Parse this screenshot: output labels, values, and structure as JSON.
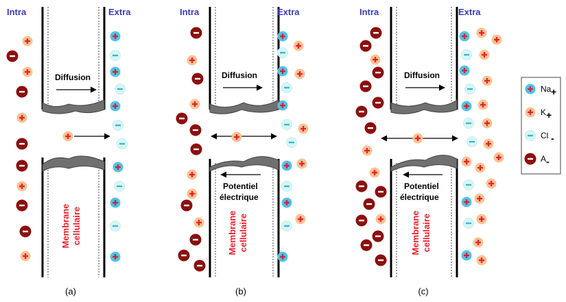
{
  "labels": {
    "intra": "Intra",
    "extra": "Extra"
  },
  "arrows": {
    "diffusion": "Diffusion",
    "potential_line1": "Potentiel",
    "potential_line2": "électrique"
  },
  "membrane": {
    "line1": "Membrane",
    "line2": "cellulaire"
  },
  "captions": [
    "(a)",
    "(b)",
    "(c)"
  ],
  "legend": [
    {
      "key": "na",
      "name": "Na",
      "charge": "+",
      "icon": "na-ion-icon"
    },
    {
      "key": "k",
      "name": "K",
      "charge": "+",
      "icon": "k-ion-icon"
    },
    {
      "key": "cl",
      "name": "Cl",
      "charge": "-",
      "icon": "cl-ion-icon"
    },
    {
      "key": "a",
      "name": "A",
      "charge": "-",
      "icon": "anion-icon"
    }
  ],
  "colors": {
    "na_fill": "#4fc3ea",
    "na_sign": "#d3262d",
    "k_fill": "#f7c494",
    "k_sign": "#e8232b",
    "cl_fill": "#d6f6f6",
    "cl_sign": "#3fb6c9",
    "a_fill": "#8b0f0f",
    "a_sign": "#ffffff",
    "label_blue": "#3a3ab8",
    "membrane_red": "#e8212b"
  }
}
